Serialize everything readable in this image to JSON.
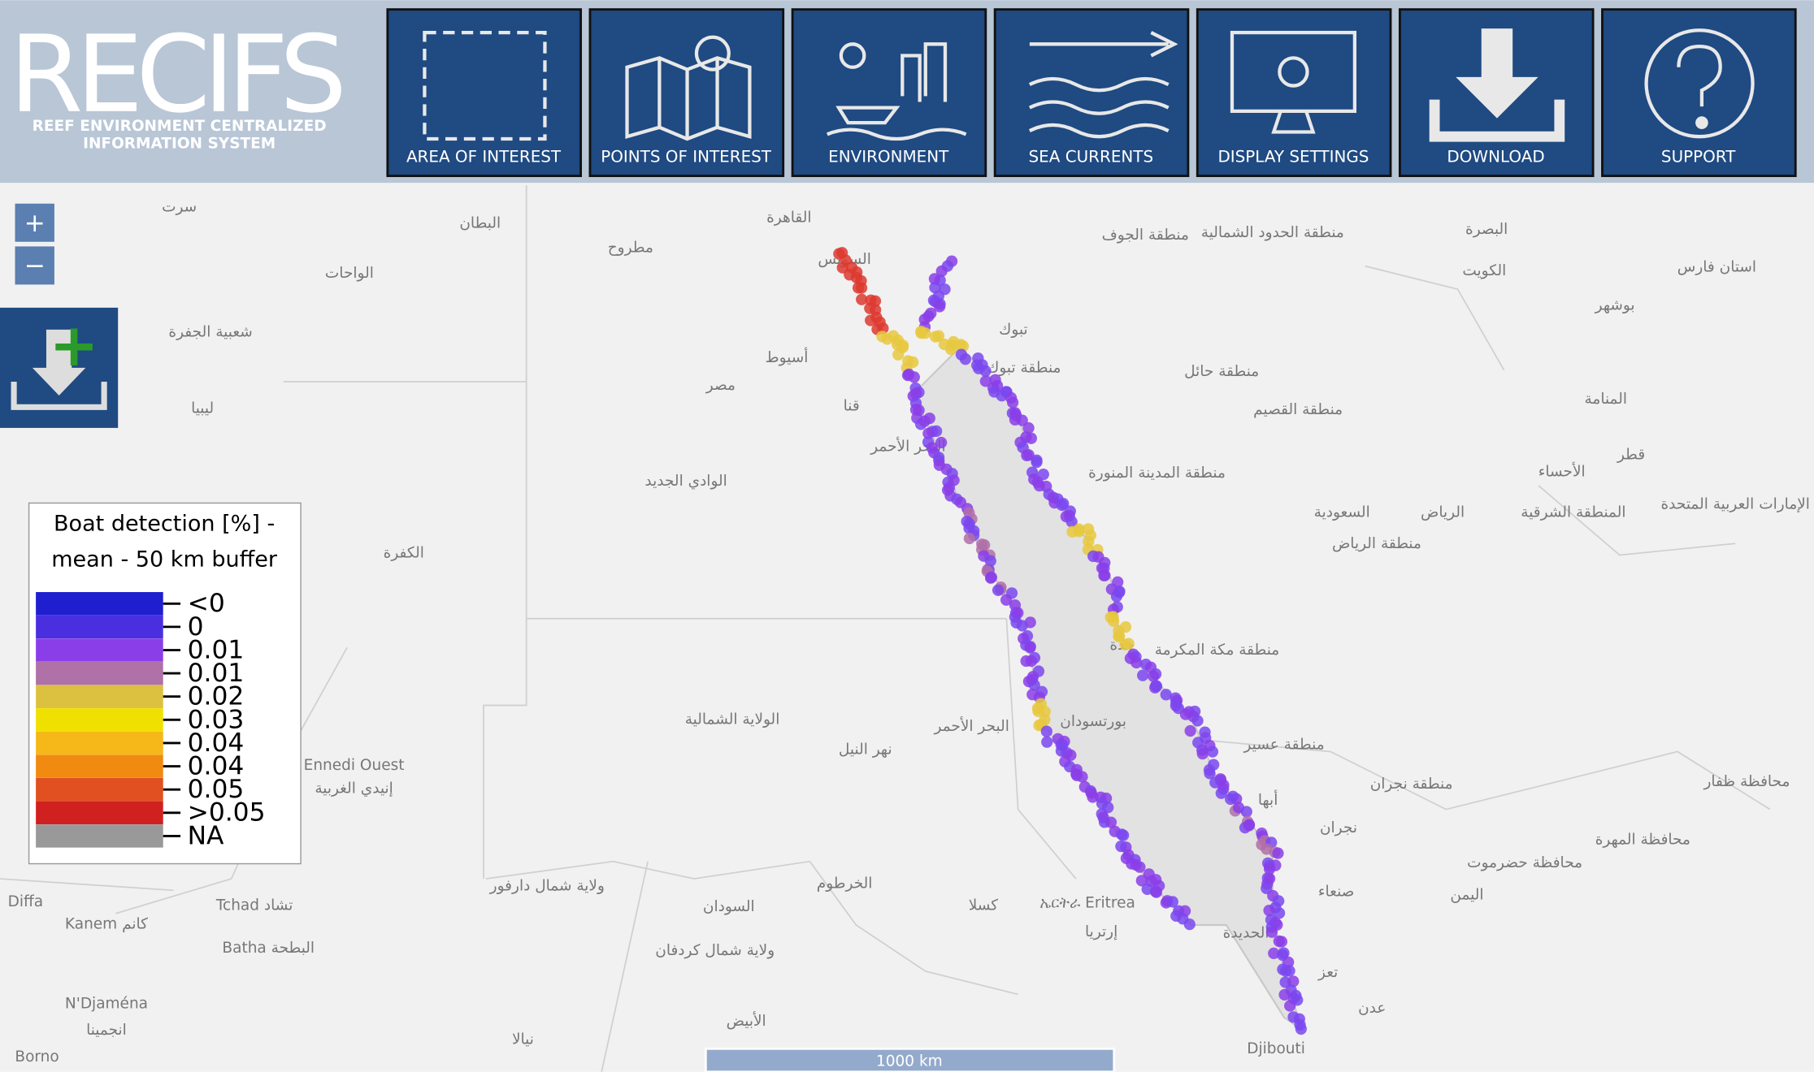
{
  "header": {
    "title": "RECIFS",
    "subtitle_lines": [
      "REEF ENVIRONMENT CENTRALIZED",
      "INFORMATION SYSTEM"
    ]
  },
  "nav": {
    "buttons": [
      "AREA OF INTEREST",
      "POINTS OF INTEREST",
      "ENVIRONMENT",
      "SEA CURRENTS",
      "DISPLAY SETTINGS",
      "DOWNLOAD",
      "SUPPORT"
    ]
  },
  "zoom": {
    "in": "+",
    "out": "−"
  },
  "legend": {
    "title_lines": [
      "Boat detection [%] -",
      "mean - 50 km buffer"
    ],
    "entries": [
      {
        "label": "<0",
        "color": "#1f1fd0"
      },
      {
        "label": "0",
        "color": "#4a2fe0"
      },
      {
        "label": "0.01",
        "color": "#8a3ee8"
      },
      {
        "label": "0.01",
        "color": "#b070a8"
      },
      {
        "label": "0.02",
        "color": "#dcc040"
      },
      {
        "label": "0.03",
        "color": "#f0e000"
      },
      {
        "label": "0.04",
        "color": "#f5b818"
      },
      {
        "label": "0.04",
        "color": "#f08a10"
      },
      {
        "label": "0.05",
        "color": "#e05020"
      },
      {
        "label": ">0.05",
        "color": "#d02020"
      },
      {
        "label": "NA",
        "color": "#999999"
      }
    ]
  },
  "scale_bar": "1000 km",
  "map": {
    "labels": [
      "القاهرة",
      "السويس",
      "مطروح",
      "البطان",
      "سرت",
      "الواحات",
      "شعبية الجفرة",
      "ليبيا",
      "أسيوط",
      "مصر",
      "قنا",
      "الوادي الجديد",
      "الكفرة",
      "البحر الأحمر",
      "تبوك",
      "منطقة تبوك",
      "منطقة الجوف",
      "منطقة الحدود الشمالية",
      "البصرة",
      "الكويت",
      "بوشهر",
      "استان فارس",
      "منطقة حائل",
      "منطقة القصيم",
      "المنامة",
      "الأحساء",
      "قطر",
      "الإمارات العربية المتحدة",
      "منطقة المدينة المنورة",
      "السعودية",
      "الرياض",
      "منطقة الرياض",
      "المنطقة الشرقية",
      "جدة",
      "منطقة مكة المكرمة",
      "بورتسودان",
      "البحر الأحمر",
      "الولاية الشمالية",
      "نهر النيل",
      "Ennedi Ouest",
      "إنيدي الغربية",
      "منطقة عسير",
      "منطقة نجران",
      "أبها",
      "نجران",
      "محافظة ظفار",
      "محافظة المهرة",
      "محافظة حضرموت",
      "اليمن",
      "صنعاء",
      "الخرطوم",
      "السودان",
      "ولاية شمال دارفور",
      "ولاية شمال كردفان",
      "كسلا",
      "ኤርትራ Eritrea",
      "إرتريا",
      "الحديدة",
      "تعز",
      "عدن",
      "Djibouti",
      "Tchad تشاد",
      "Diffa",
      "Kanem كانم",
      "Batha البطحة",
      "N'Djaména",
      "انجمينا",
      "الأبيض",
      "نيالا",
      "Borno"
    ]
  }
}
